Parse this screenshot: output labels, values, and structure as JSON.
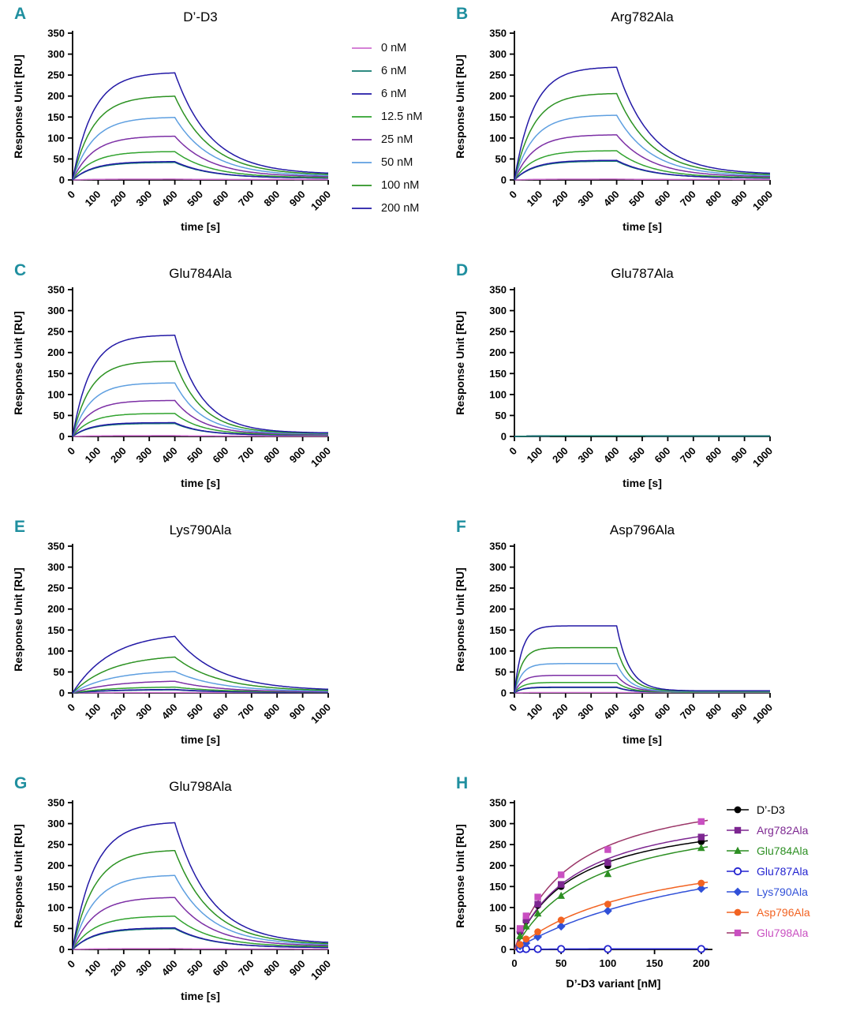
{
  "style": {
    "panel_letter_color": "#1f8f9f",
    "axis_color": "#000000"
  },
  "panels": {
    "A": {
      "letter": "A"
    },
    "B": {
      "letter": "B"
    },
    "C": {
      "letter": "C"
    },
    "D": {
      "letter": "D"
    },
    "E": {
      "letter": "E"
    },
    "F": {
      "letter": "F"
    },
    "G": {
      "letter": "G"
    },
    "H": {
      "letter": "H"
    }
  },
  "concentration_legend": {
    "items": [
      {
        "label": "0 nM",
        "color": "#cf6fd0"
      },
      {
        "label": "6 nM",
        "color": "#117a6f"
      },
      {
        "label": "6 nM",
        "color": "#2319a6"
      },
      {
        "label": "12.5 nM",
        "color": "#31a32f"
      },
      {
        "label": "25 nM",
        "color": "#7c2fa5"
      },
      {
        "label": "50 nM",
        "color": "#5e9fe0"
      },
      {
        "label": "100 nM",
        "color": "#2c9222"
      },
      {
        "label": "200 nM",
        "color": "#2319a6"
      }
    ]
  },
  "chart_data": [
    {
      "id": "A",
      "type": "line",
      "kind": "SPR sensorgram",
      "title": "D’-D3",
      "xlabel": "time [s]",
      "ylabel": "Response Unit [RU]",
      "xlim": [
        0,
        1000
      ],
      "ylim": [
        0,
        350
      ],
      "xticks": [
        0,
        100,
        200,
        300,
        400,
        500,
        600,
        700,
        800,
        900,
        1000
      ],
      "yticks": [
        0,
        50,
        100,
        150,
        200,
        250,
        300,
        350
      ],
      "association_end_s": 400,
      "tau_on_s": 80,
      "tau_off_s": 140,
      "series": [
        {
          "name": "0 nM",
          "color": "#cf6fd0",
          "plateau": 2,
          "end": 1
        },
        {
          "name": "6 nM",
          "color": "#117a6f",
          "plateau": 42,
          "end": 4
        },
        {
          "name": "6 nM",
          "color": "#2319a6",
          "plateau": 44,
          "end": 4
        },
        {
          "name": "12.5 nM",
          "color": "#31a32f",
          "plateau": 68,
          "end": 5
        },
        {
          "name": "25 nM",
          "color": "#7c2fa5",
          "plateau": 105,
          "end": 7
        },
        {
          "name": "50 nM",
          "color": "#5e9fe0",
          "plateau": 150,
          "end": 9
        },
        {
          "name": "100 nM",
          "color": "#2c9222",
          "plateau": 201,
          "end": 11
        },
        {
          "name": "200 nM",
          "color": "#2319a6",
          "plateau": 257,
          "end": 13
        }
      ]
    },
    {
      "id": "B",
      "type": "line",
      "kind": "SPR sensorgram",
      "title": "Arg782Ala",
      "xlabel": "time [s]",
      "ylabel": "Response Unit [RU]",
      "xlim": [
        0,
        1000
      ],
      "ylim": [
        0,
        350
      ],
      "xticks": [
        0,
        100,
        200,
        300,
        400,
        500,
        600,
        700,
        800,
        900,
        1000
      ],
      "yticks": [
        0,
        50,
        100,
        150,
        200,
        250,
        300,
        350
      ],
      "association_end_s": 400,
      "tau_on_s": 75,
      "tau_off_s": 135,
      "series": [
        {
          "name": "0 nM",
          "color": "#cf6fd0",
          "plateau": 2,
          "end": 1
        },
        {
          "name": "6 nM",
          "color": "#117a6f",
          "plateau": 45,
          "end": 4
        },
        {
          "name": "6 nM",
          "color": "#2319a6",
          "plateau": 47,
          "end": 4
        },
        {
          "name": "12.5 nM",
          "color": "#31a32f",
          "plateau": 70,
          "end": 5
        },
        {
          "name": "25 nM",
          "color": "#7c2fa5",
          "plateau": 108,
          "end": 7
        },
        {
          "name": "50 nM",
          "color": "#5e9fe0",
          "plateau": 155,
          "end": 9
        },
        {
          "name": "100 nM",
          "color": "#2c9222",
          "plateau": 207,
          "end": 11
        },
        {
          "name": "200 nM",
          "color": "#2319a6",
          "plateau": 270,
          "end": 13
        }
      ]
    },
    {
      "id": "C",
      "type": "line",
      "kind": "SPR sensorgram",
      "title": "Glu784Ala",
      "xlabel": "time [s]",
      "ylabel": "Response Unit [RU]",
      "xlim": [
        0,
        1000
      ],
      "ylim": [
        0,
        350
      ],
      "xticks": [
        0,
        100,
        200,
        300,
        400,
        500,
        600,
        700,
        800,
        900,
        1000
      ],
      "yticks": [
        0,
        50,
        100,
        150,
        200,
        250,
        300,
        350
      ],
      "association_end_s": 400,
      "tau_on_s": 70,
      "tau_off_s": 105,
      "series": [
        {
          "name": "0 nM",
          "color": "#cf6fd0",
          "plateau": 2,
          "end": 1
        },
        {
          "name": "6 nM",
          "color": "#117a6f",
          "plateau": 31,
          "end": 3
        },
        {
          "name": "6 nM",
          "color": "#2319a6",
          "plateau": 33,
          "end": 3
        },
        {
          "name": "12.5 nM",
          "color": "#31a32f",
          "plateau": 55,
          "end": 4
        },
        {
          "name": "25 nM",
          "color": "#7c2fa5",
          "plateau": 86,
          "end": 5
        },
        {
          "name": "50 nM",
          "color": "#5e9fe0",
          "plateau": 128,
          "end": 6
        },
        {
          "name": "100 nM",
          "color": "#2c9222",
          "plateau": 180,
          "end": 7
        },
        {
          "name": "200 nM",
          "color": "#2319a6",
          "plateau": 242,
          "end": 8
        }
      ]
    },
    {
      "id": "D",
      "type": "line",
      "kind": "SPR sensorgram",
      "title": "Glu787Ala",
      "xlabel": "time [s]",
      "ylabel": "Response Unit [RU]",
      "xlim": [
        0,
        1000
      ],
      "ylim": [
        0,
        350
      ],
      "xticks": [
        0,
        100,
        200,
        300,
        400,
        500,
        600,
        700,
        800,
        900,
        1000
      ],
      "yticks": [
        0,
        50,
        100,
        150,
        200,
        250,
        300,
        350
      ],
      "association_end_s": 400,
      "tau_on_s": 80,
      "tau_off_s": 140,
      "series": [
        {
          "name": "0 nM",
          "color": "#cf6fd0",
          "plateau": 1.5,
          "end": 1
        },
        {
          "name": "6 nM",
          "color": "#2319a6",
          "plateau": 1.5,
          "end": 1
        },
        {
          "name": "12.5 nM",
          "color": "#31a32f",
          "plateau": 1.5,
          "end": 1
        },
        {
          "name": "25 nM",
          "color": "#7c2fa5",
          "plateau": 1.5,
          "end": 1
        },
        {
          "name": "50 nM",
          "color": "#5e9fe0",
          "plateau": 1.5,
          "end": 1
        },
        {
          "name": "100 nM",
          "color": "#2c9222",
          "plateau": 1.5,
          "end": 1
        },
        {
          "name": "200 nM",
          "color": "#2319a6",
          "plateau": 1.5,
          "end": 1
        },
        {
          "name": "6 nM",
          "color": "#117a6f",
          "plateau": 1.5,
          "end": 1
        }
      ]
    },
    {
      "id": "E",
      "type": "line",
      "kind": "SPR sensorgram",
      "title": "Lys790Ala",
      "xlabel": "time [s]",
      "ylabel": "Response Unit [RU]",
      "xlim": [
        0,
        1000
      ],
      "ylim": [
        0,
        350
      ],
      "xticks": [
        0,
        100,
        200,
        300,
        400,
        500,
        600,
        700,
        800,
        900,
        1000
      ],
      "yticks": [
        0,
        50,
        100,
        150,
        200,
        250,
        300,
        350
      ],
      "association_end_s": 400,
      "tau_on_s": 150,
      "tau_off_s": 170,
      "series": [
        {
          "name": "0 nM",
          "color": "#cf6fd0",
          "plateau": 1,
          "end": 1
        },
        {
          "name": "6 nM",
          "color": "#117a6f",
          "plateau": 8,
          "end": 1
        },
        {
          "name": "6 nM",
          "color": "#2319a6",
          "plateau": 9,
          "end": 1
        },
        {
          "name": "12.5 nM",
          "color": "#31a32f",
          "plateau": 15,
          "end": 2
        },
        {
          "name": "25 nM",
          "color": "#7c2fa5",
          "plateau": 30,
          "end": 2
        },
        {
          "name": "50 nM",
          "color": "#5e9fe0",
          "plateau": 55,
          "end": 3
        },
        {
          "name": "100 nM",
          "color": "#2c9222",
          "plateau": 92,
          "end": 4
        },
        {
          "name": "200 nM",
          "color": "#2319a6",
          "plateau": 145,
          "end": 5
        }
      ]
    },
    {
      "id": "F",
      "type": "line",
      "kind": "SPR sensorgram",
      "title": "Asp796Ala",
      "xlabel": "time [s]",
      "ylabel": "Response Unit [RU]",
      "xlim": [
        0,
        1000
      ],
      "ylim": [
        0,
        350
      ],
      "xticks": [
        0,
        100,
        200,
        300,
        400,
        500,
        600,
        700,
        800,
        900,
        1000
      ],
      "yticks": [
        0,
        50,
        100,
        150,
        200,
        250,
        300,
        350
      ],
      "association_end_s": 400,
      "tau_on_s": 30,
      "tau_off_s": 50,
      "series": [
        {
          "name": "0 nM",
          "color": "#cf6fd0",
          "plateau": 1,
          "end": 1
        },
        {
          "name": "6 nM",
          "color": "#117a6f",
          "plateau": 13,
          "end": 2
        },
        {
          "name": "6 nM",
          "color": "#2319a6",
          "plateau": 14,
          "end": 2
        },
        {
          "name": "12.5 nM",
          "color": "#31a32f",
          "plateau": 25,
          "end": 2
        },
        {
          "name": "25 nM",
          "color": "#7c2fa5",
          "plateau": 42,
          "end": 3
        },
        {
          "name": "50 nM",
          "color": "#5e9fe0",
          "plateau": 70,
          "end": 3
        },
        {
          "name": "100 nM",
          "color": "#2c9222",
          "plateau": 108,
          "end": 4
        },
        {
          "name": "200 nM",
          "color": "#2319a6",
          "plateau": 160,
          "end": 5
        }
      ]
    },
    {
      "id": "G",
      "type": "line",
      "kind": "SPR sensorgram",
      "title": "Glu798Ala",
      "xlabel": "time [s]",
      "ylabel": "Response Unit [RU]",
      "xlim": [
        0,
        1000
      ],
      "ylim": [
        0,
        350
      ],
      "xticks": [
        0,
        100,
        200,
        300,
        400,
        500,
        600,
        700,
        800,
        900,
        1000
      ],
      "yticks": [
        0,
        50,
        100,
        150,
        200,
        250,
        300,
        350
      ],
      "association_end_s": 400,
      "tau_on_s": 85,
      "tau_off_s": 140,
      "series": [
        {
          "name": "0 nM",
          "color": "#cf6fd0",
          "plateau": 2,
          "end": 1
        },
        {
          "name": "6 nM",
          "color": "#117a6f",
          "plateau": 50,
          "end": 4
        },
        {
          "name": "6 nM",
          "color": "#2319a6",
          "plateau": 52,
          "end": 4
        },
        {
          "name": "12.5 nM",
          "color": "#31a32f",
          "plateau": 80,
          "end": 6
        },
        {
          "name": "25 nM",
          "color": "#7c2fa5",
          "plateau": 125,
          "end": 8
        },
        {
          "name": "50 nM",
          "color": "#5e9fe0",
          "plateau": 178,
          "end": 10
        },
        {
          "name": "100 nM",
          "color": "#2c9222",
          "plateau": 238,
          "end": 11
        },
        {
          "name": "200 nM",
          "color": "#2319a6",
          "plateau": 305,
          "end": 13
        }
      ]
    },
    {
      "id": "H",
      "type": "scatter",
      "kind": "saturation binding",
      "title": "",
      "xlabel": "D’-D3 variant [nM]",
      "ylabel": "Response Unit [RU]",
      "xlim": [
        0,
        212
      ],
      "ylim": [
        0,
        350
      ],
      "xticks": [
        0,
        50,
        100,
        150,
        200
      ],
      "yticks": [
        0,
        50,
        100,
        150,
        200,
        250,
        300,
        350
      ],
      "x": [
        6,
        12.5,
        25,
        50,
        100,
        200
      ],
      "series": [
        {
          "name": "D’-D3",
          "color": "#000000",
          "marker": "circle",
          "y": [
            42,
            68,
            105,
            150,
            200,
            257
          ],
          "fit": {
            "rmax": 337,
            "kd": 62
          }
        },
        {
          "name": "Arg782Ala",
          "color": "#7d2791",
          "marker": "square",
          "y": [
            45,
            70,
            108,
            155,
            207,
            268
          ],
          "fit": {
            "rmax": 359,
            "kd": 66
          }
        },
        {
          "name": "Glu784Ala",
          "color": "#2c8f22",
          "marker": "triangle",
          "y": [
            32,
            55,
            86,
            128,
            180,
            242
          ],
          "fit": {
            "rmax": 344,
            "kd": 84
          }
        },
        {
          "name": "Glu787Ala",
          "color": "#2222d0",
          "marker": "circle-open",
          "y": [
            1,
            1,
            1,
            1,
            1,
            1
          ],
          "fit": {
            "rmax": 2,
            "kd": 50
          }
        },
        {
          "name": "Lys790Ala",
          "color": "#3050d8",
          "marker": "diamond",
          "y": [
            8,
            15,
            30,
            55,
            92,
            145
          ],
          "fit": {
            "rmax": 319,
            "kd": 240
          }
        },
        {
          "name": "Asp796Ala",
          "color": "#f26322",
          "marker": "circle",
          "y": [
            12,
            25,
            42,
            70,
            108,
            158
          ],
          "fit": {
            "rmax": 272,
            "kd": 144
          }
        },
        {
          "name": "Glu798Ala",
          "color": "#c94fc1",
          "line_color": "#9b3668",
          "marker": "square",
          "y": [
            50,
            80,
            125,
            178,
            238,
            305
          ],
          "fit": {
            "rmax": 400,
            "kd": 62
          }
        }
      ]
    }
  ]
}
